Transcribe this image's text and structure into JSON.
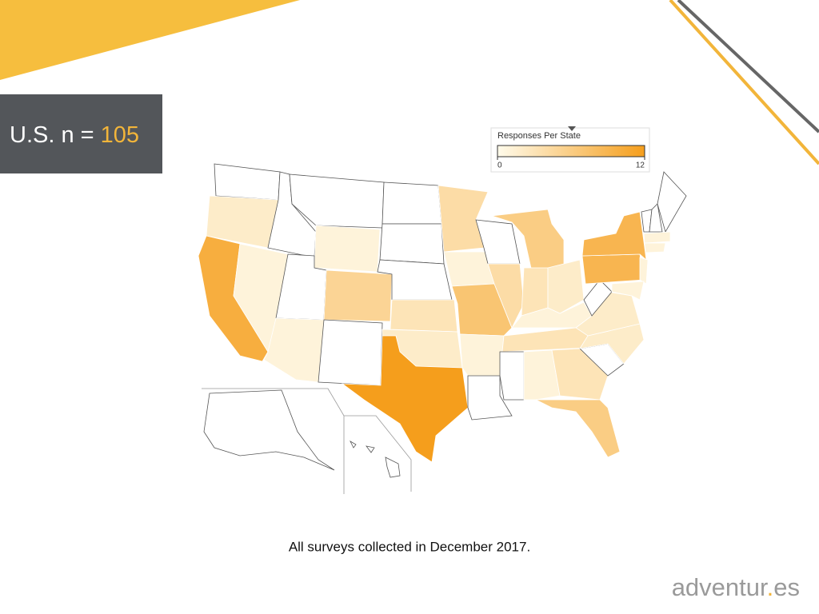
{
  "header": {
    "label": "U.S. n =",
    "value": "105"
  },
  "map": {
    "legend_title": "Responses Per State",
    "scale": [
      0,
      12
    ],
    "ticks": [
      0,
      12
    ],
    "colors": [
      "#fffbeb",
      "#f59e1c"
    ],
    "values": [
      null,
      2,
      10,
      1,
      null,
      null,
      1,
      null,
      5,
      1,
      null,
      null,
      null,
      null,
      3,
      2,
      12,
      4,
      1,
      7,
      1,
      null,
      null,
      4,
      6,
      3,
      2,
      1,
      3,
      null,
      1,
      3,
      6,
      null,
      2,
      2,
      null,
      9,
      9,
      null,
      null,
      null,
      1,
      1,
      1,
      1,
      null,
      null
    ]
  },
  "caption": "All surveys collected in December 2017.",
  "logo": [
    "adventur",
    ".",
    "es"
  ]
}
